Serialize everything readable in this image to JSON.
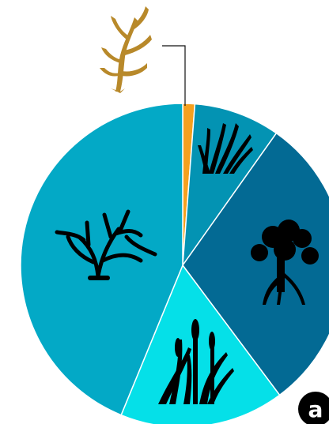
{
  "chart_data": {
    "type": "pie",
    "values": [
      1.2,
      8.6,
      30,
      16.4,
      43.8
    ],
    "colors": [
      "#f5a01e",
      "#0393b3",
      "#036a94",
      "#05e0e8",
      "#03a9c6"
    ],
    "start_angle": 0,
    "direction": "clockwise",
    "panel_label": "a"
  }
}
